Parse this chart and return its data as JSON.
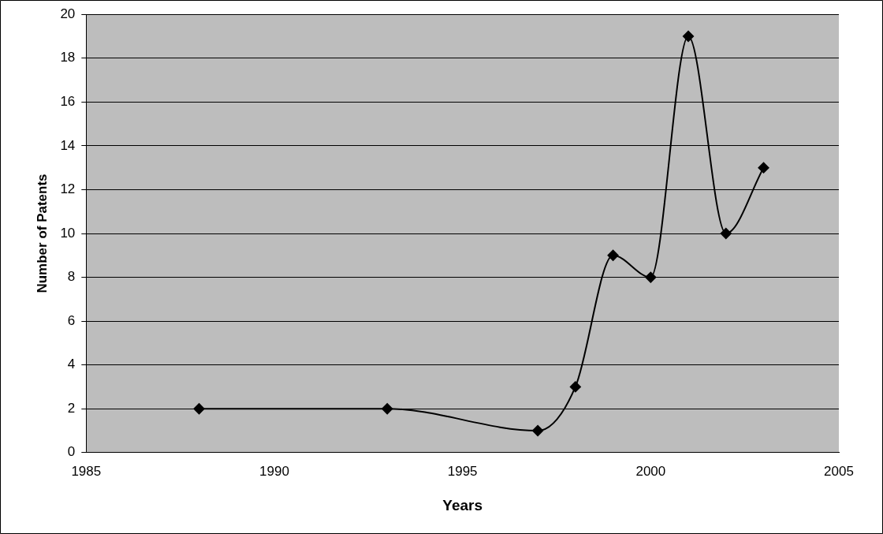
{
  "chart_data": {
    "type": "line",
    "xlabel": "Years",
    "ylabel": "Number of Patents",
    "x": [
      1988,
      1993,
      1997,
      1998,
      1999,
      2000,
      2001,
      2002,
      2003
    ],
    "series": [
      {
        "color": "#000000",
        "values": [
          2,
          2,
          1,
          3,
          9,
          8,
          19,
          10,
          13
        ]
      }
    ],
    "xlim": [
      1985,
      2005
    ],
    "xticks": [
      1985,
      1990,
      1995,
      2000,
      2005
    ],
    "ylim": [
      0,
      20
    ],
    "yticks": [
      0,
      2,
      4,
      6,
      8,
      10,
      12,
      14,
      16,
      18,
      20
    ],
    "grid": "y",
    "legend": false,
    "marker": "diamond",
    "line_style": "solid"
  }
}
